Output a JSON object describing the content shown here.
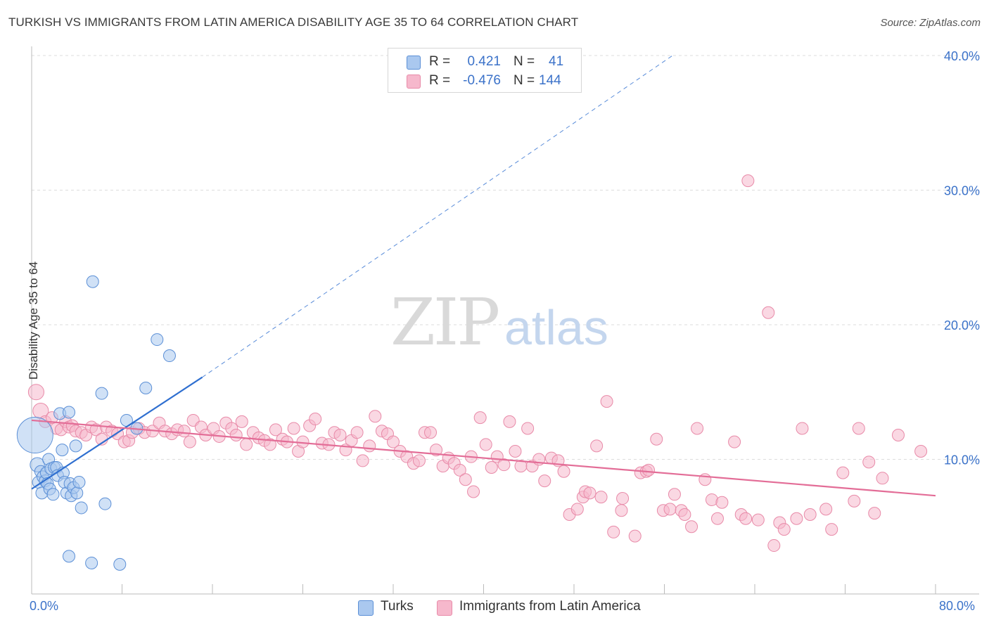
{
  "header": {
    "title": "TURKISH VS IMMIGRANTS FROM LATIN AMERICA DISABILITY AGE 35 TO 64 CORRELATION CHART",
    "source": "Source: ZipAtlas.com"
  },
  "watermark": {
    "zip": "ZIP",
    "atlas": "atlas"
  },
  "legend": {
    "rows": [
      {
        "r_label": "R =",
        "r_value": "0.421",
        "n_label": "N =",
        "n_value": "41",
        "color": "#aac8ef"
      },
      {
        "r_label": "R =",
        "r_value": "-0.476",
        "n_label": "N =",
        "n_value": "144",
        "color": "#f6b8cc"
      }
    ]
  },
  "bottom_legend": {
    "items": [
      {
        "label": "Turks",
        "color": "#aac8ef"
      },
      {
        "label": "Immigrants from Latin America",
        "color": "#f6b8cc"
      }
    ]
  },
  "axes": {
    "x_min_label": "0.0%",
    "x_max_label": "80.0%",
    "y_label": "Disability Age 35 to 64",
    "y_ticks": [
      "40.0%",
      "30.0%",
      "20.0%",
      "10.0%"
    ]
  },
  "chart_data": {
    "type": "scatter",
    "title": "TURKISH VS IMMIGRANTS FROM LATIN AMERICA DISABILITY AGE 35 TO 64 CORRELATION CHART",
    "xlabel": "",
    "ylabel": "Disability Age 35 to 64",
    "xlim": [
      0,
      80
    ],
    "ylim": [
      0,
      40
    ],
    "y_tick_values": [
      10,
      20,
      30,
      40
    ],
    "grid": "horizontal dashed",
    "legend_placement": "top-center",
    "colors": {
      "turks_fill": "#aac8ef",
      "turks_stroke": "#5b8fd6",
      "turks_line": "#2f6fd0",
      "latin_fill": "#f6b8cc",
      "latin_stroke": "#e88aa8",
      "latin_line": "#e36d97"
    },
    "series": [
      {
        "name": "Turks",
        "trend": {
          "x": [
            0,
            15.1
          ],
          "y": [
            7.8,
            16.1
          ],
          "extension_to": [
            56.9,
            40.1
          ]
        },
        "points": [
          [
            0.3,
            11.8,
            3
          ],
          [
            0.5,
            9.6,
            1.2
          ],
          [
            0.6,
            8.3,
            1
          ],
          [
            0.8,
            9.1,
            1
          ],
          [
            0.9,
            7.5,
            1
          ],
          [
            1.0,
            8.7,
            1
          ],
          [
            1.2,
            8.4,
            1
          ],
          [
            1.3,
            9.0,
            1
          ],
          [
            1.4,
            8.2,
            1
          ],
          [
            1.5,
            10.0,
            1
          ],
          [
            1.6,
            7.8,
            1
          ],
          [
            1.7,
            9.3,
            1
          ],
          [
            1.9,
            7.4,
            1
          ],
          [
            2.0,
            9.4,
            1
          ],
          [
            2.2,
            9.4,
            1
          ],
          [
            2.3,
            8.8,
            1
          ],
          [
            2.5,
            13.4,
            1
          ],
          [
            2.7,
            10.7,
            1
          ],
          [
            2.8,
            9.0,
            1
          ],
          [
            2.9,
            8.3,
            1
          ],
          [
            3.1,
            7.5,
            1
          ],
          [
            3.3,
            13.5,
            1
          ],
          [
            3.4,
            8.2,
            1
          ],
          [
            3.5,
            7.3,
            1
          ],
          [
            3.7,
            7.9,
            1
          ],
          [
            3.9,
            11.0,
            1
          ],
          [
            4.0,
            7.5,
            1
          ],
          [
            4.2,
            8.3,
            1
          ],
          [
            4.4,
            6.4,
            1
          ],
          [
            5.4,
            23.2,
            1
          ],
          [
            6.2,
            14.9,
            1
          ],
          [
            6.5,
            6.7,
            1
          ],
          [
            8.4,
            12.9,
            1
          ],
          [
            9.3,
            12.3,
            1
          ],
          [
            10.1,
            15.3,
            1
          ],
          [
            11.1,
            18.9,
            1
          ],
          [
            12.2,
            17.7,
            1
          ],
          [
            3.3,
            2.8,
            1
          ],
          [
            5.3,
            2.3,
            1
          ],
          [
            7.8,
            2.2,
            1
          ],
          [
            4.1,
            6.2,
            0
          ]
        ]
      },
      {
        "name": "Immigrants from Latin America",
        "trend": {
          "x": [
            0,
            80
          ],
          "y": [
            12.9,
            7.3
          ]
        },
        "points": [
          [
            0.4,
            15.0,
            1.3
          ],
          [
            0.8,
            13.6,
            1.3
          ],
          [
            1.2,
            12.8,
            1
          ],
          [
            1.8,
            13.1,
            1
          ],
          [
            2.2,
            12.3,
            1
          ],
          [
            2.6,
            12.2,
            1
          ],
          [
            3.0,
            12.8,
            1
          ],
          [
            3.3,
            12.4,
            1
          ],
          [
            3.6,
            12.5,
            1
          ],
          [
            3.9,
            12.1,
            1
          ],
          [
            4.4,
            12.0,
            1
          ],
          [
            4.8,
            11.8,
            1
          ],
          [
            5.3,
            12.4,
            1
          ],
          [
            5.7,
            12.2,
            1
          ],
          [
            6.2,
            11.5,
            1
          ],
          [
            6.6,
            12.4,
            1
          ],
          [
            7.1,
            12.1,
            1
          ],
          [
            7.6,
            11.9,
            1
          ],
          [
            8.2,
            11.3,
            1
          ],
          [
            8.6,
            11.4,
            1
          ],
          [
            8.9,
            12.0,
            1
          ],
          [
            9.5,
            12.3,
            1
          ],
          [
            10.0,
            12.0,
            1
          ],
          [
            10.7,
            12.1,
            1
          ],
          [
            11.3,
            12.7,
            1
          ],
          [
            11.8,
            12.1,
            1
          ],
          [
            12.4,
            11.9,
            1
          ],
          [
            12.9,
            12.2,
            1
          ],
          [
            13.5,
            12.1,
            1
          ],
          [
            14.0,
            11.3,
            1
          ],
          [
            14.3,
            12.9,
            1
          ],
          [
            15.0,
            12.4,
            1
          ],
          [
            15.4,
            11.8,
            1
          ],
          [
            16.1,
            12.3,
            1
          ],
          [
            16.6,
            11.7,
            1
          ],
          [
            17.2,
            12.7,
            1
          ],
          [
            17.7,
            12.3,
            1
          ],
          [
            18.1,
            11.8,
            1
          ],
          [
            18.6,
            12.8,
            1
          ],
          [
            19.0,
            11.1,
            1
          ],
          [
            19.6,
            12.0,
            1
          ],
          [
            20.1,
            11.6,
            1
          ],
          [
            20.6,
            11.4,
            1
          ],
          [
            21.1,
            11.1,
            1
          ],
          [
            21.6,
            12.2,
            1
          ],
          [
            22.2,
            11.5,
            1
          ],
          [
            22.6,
            11.3,
            1
          ],
          [
            23.2,
            12.3,
            1
          ],
          [
            23.6,
            10.6,
            1
          ],
          [
            24.0,
            11.3,
            1
          ],
          [
            24.6,
            12.5,
            1
          ],
          [
            25.1,
            13.0,
            1
          ],
          [
            25.7,
            11.2,
            1
          ],
          [
            26.3,
            11.1,
            1
          ],
          [
            26.8,
            12.0,
            1
          ],
          [
            27.3,
            11.8,
            1
          ],
          [
            27.8,
            10.7,
            1
          ],
          [
            28.3,
            11.4,
            1
          ],
          [
            28.8,
            12.0,
            1
          ],
          [
            29.3,
            9.9,
            1
          ],
          [
            29.9,
            11.0,
            1
          ],
          [
            30.4,
            13.2,
            1
          ],
          [
            31.0,
            12.1,
            1
          ],
          [
            31.5,
            11.9,
            1
          ],
          [
            32.0,
            11.3,
            1
          ],
          [
            32.6,
            10.6,
            1
          ],
          [
            33.2,
            10.2,
            1
          ],
          [
            33.8,
            9.7,
            1
          ],
          [
            34.3,
            9.9,
            1
          ],
          [
            34.8,
            12.0,
            1
          ],
          [
            35.3,
            12.0,
            1
          ],
          [
            35.8,
            10.7,
            1
          ],
          [
            36.4,
            9.5,
            1
          ],
          [
            36.9,
            10.1,
            1
          ],
          [
            37.4,
            9.7,
            1
          ],
          [
            37.9,
            9.2,
            1
          ],
          [
            38.4,
            8.5,
            1
          ],
          [
            38.9,
            10.2,
            1
          ],
          [
            39.1,
            7.6,
            1
          ],
          [
            39.7,
            13.1,
            1
          ],
          [
            40.2,
            11.1,
            1
          ],
          [
            40.7,
            9.4,
            1
          ],
          [
            41.2,
            10.2,
            1
          ],
          [
            41.8,
            9.6,
            1
          ],
          [
            42.3,
            12.8,
            1
          ],
          [
            42.8,
            10.6,
            1
          ],
          [
            43.3,
            9.5,
            1
          ],
          [
            43.9,
            12.3,
            1
          ],
          [
            44.3,
            9.5,
            1
          ],
          [
            44.9,
            10.0,
            1
          ],
          [
            45.4,
            8.4,
            1
          ],
          [
            46.0,
            10.1,
            1
          ],
          [
            46.6,
            9.9,
            1
          ],
          [
            47.1,
            9.1,
            1
          ],
          [
            47.6,
            5.9,
            1
          ],
          [
            48.3,
            6.3,
            1
          ],
          [
            48.8,
            7.2,
            1
          ],
          [
            49.0,
            7.6,
            1
          ],
          [
            49.4,
            7.5,
            1
          ],
          [
            50.0,
            11.0,
            1
          ],
          [
            50.4,
            7.2,
            1
          ],
          [
            50.9,
            14.3,
            1
          ],
          [
            51.5,
            4.6,
            1
          ],
          [
            52.2,
            6.2,
            1
          ],
          [
            52.3,
            7.1,
            1
          ],
          [
            53.4,
            4.3,
            1
          ],
          [
            53.9,
            9.0,
            1
          ],
          [
            54.4,
            9.1,
            1
          ],
          [
            54.6,
            9.2,
            1
          ],
          [
            55.3,
            11.5,
            1
          ],
          [
            55.9,
            6.2,
            1
          ],
          [
            56.5,
            6.3,
            1
          ],
          [
            56.9,
            7.4,
            1
          ],
          [
            57.5,
            6.2,
            1
          ],
          [
            57.8,
            5.9,
            1
          ],
          [
            58.4,
            5.0,
            1
          ],
          [
            58.9,
            12.3,
            1
          ],
          [
            59.6,
            8.5,
            1
          ],
          [
            60.2,
            7.0,
            1
          ],
          [
            60.7,
            5.6,
            1
          ],
          [
            61.1,
            6.8,
            1
          ],
          [
            62.2,
            11.3,
            1
          ],
          [
            62.8,
            5.9,
            1
          ],
          [
            63.2,
            5.6,
            1
          ],
          [
            63.4,
            30.7,
            1
          ],
          [
            64.3,
            5.5,
            1
          ],
          [
            65.2,
            20.9,
            1
          ],
          [
            65.7,
            3.6,
            1
          ],
          [
            66.2,
            5.3,
            1
          ],
          [
            66.6,
            4.8,
            1
          ],
          [
            67.7,
            5.6,
            1
          ],
          [
            68.2,
            12.3,
            1
          ],
          [
            68.9,
            5.9,
            1
          ],
          [
            70.3,
            6.3,
            1
          ],
          [
            70.8,
            4.8,
            1
          ],
          [
            71.8,
            9.0,
            1
          ],
          [
            72.8,
            6.9,
            1
          ],
          [
            73.2,
            12.3,
            1
          ],
          [
            74.1,
            9.8,
            1
          ],
          [
            74.6,
            6.0,
            1
          ],
          [
            75.3,
            8.6,
            1
          ],
          [
            76.7,
            11.8,
            1
          ],
          [
            78.7,
            10.6,
            1
          ],
          [
            65.0,
            5.4,
            0
          ]
        ]
      }
    ]
  }
}
